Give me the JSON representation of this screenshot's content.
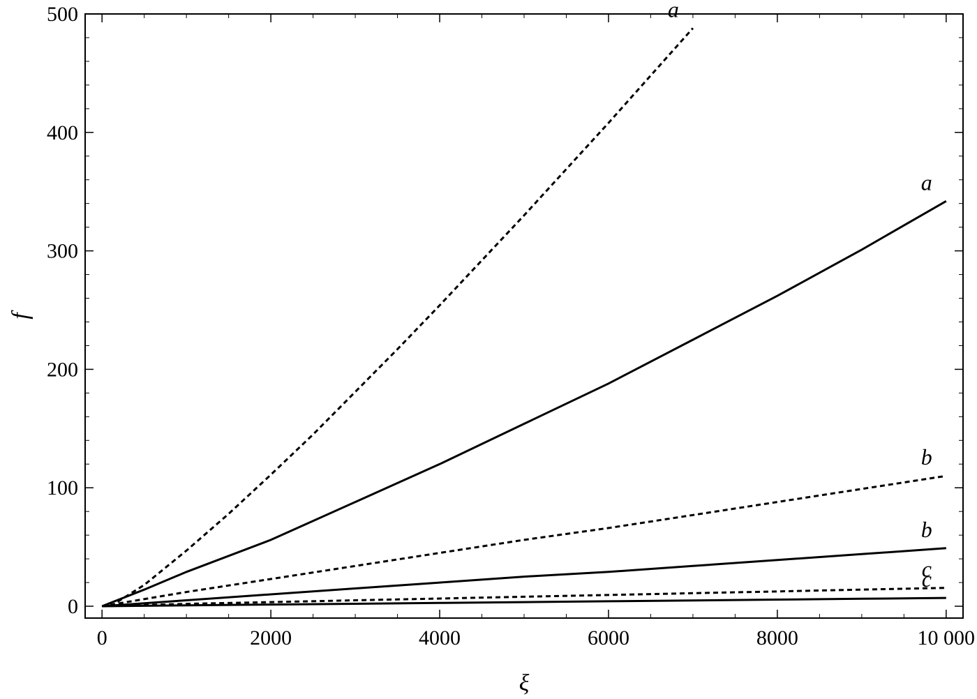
{
  "chart_data": {
    "type": "line",
    "title": "",
    "xlabel": "ξ",
    "ylabel": "f",
    "xlim": [
      -200,
      10200
    ],
    "ylim": [
      -10,
      500
    ],
    "xticks": [
      0,
      2000,
      4000,
      6000,
      8000,
      10000
    ],
    "xtick_labels": [
      "0",
      "2000",
      "4000",
      "6000",
      "8000",
      "10 000"
    ],
    "yticks": [
      0,
      100,
      200,
      300,
      400,
      500
    ],
    "ytick_labels": [
      "0",
      "100",
      "200",
      "300",
      "400",
      "500"
    ],
    "grid": false,
    "legend": "none",
    "series": [
      {
        "label": "a",
        "style": "dashed",
        "x": [
          100,
          500,
          1000,
          1500,
          2000,
          2500,
          3000,
          3500,
          4000,
          4500,
          5000,
          5500,
          6000,
          6500,
          7000
        ],
        "values": [
          0,
          18,
          47,
          78,
          111,
          145,
          181,
          217,
          254,
          292,
          330,
          369,
          408,
          448,
          488
        ]
      },
      {
        "label": "a",
        "style": "solid",
        "x": [
          0,
          500,
          1000,
          2000,
          3000,
          4000,
          5000,
          6000,
          7000,
          8000,
          9000,
          10000
        ],
        "values": [
          0,
          14,
          29,
          56,
          88,
          120,
          154,
          188,
          225,
          262,
          301,
          342
        ]
      },
      {
        "label": "b",
        "style": "dashed",
        "x": [
          0,
          1000,
          2000,
          3000,
          4000,
          5000,
          6000,
          7000,
          8000,
          9000,
          10000
        ],
        "values": [
          0,
          12,
          23,
          34,
          45,
          56,
          66,
          77,
          88,
          99,
          110
        ]
      },
      {
        "label": "b",
        "style": "solid",
        "x": [
          0,
          1000,
          2000,
          3000,
          4000,
          5000,
          6000,
          7000,
          8000,
          9000,
          10000
        ],
        "values": [
          0,
          5,
          10,
          15,
          20,
          25,
          29,
          34,
          39,
          44,
          49
        ]
      },
      {
        "label": "c",
        "style": "dashed",
        "x": [
          0,
          1000,
          2000,
          3000,
          4000,
          5000,
          6000,
          7000,
          8000,
          9000,
          10000
        ],
        "values": [
          0,
          2,
          3.5,
          5,
          6.5,
          8,
          9.5,
          11,
          12.5,
          14,
          15.5
        ]
      },
      {
        "label": "c",
        "style": "solid",
        "x": [
          0,
          1000,
          2000,
          3000,
          4000,
          5000,
          6000,
          7000,
          8000,
          9000,
          10000
        ],
        "values": [
          0,
          0.7,
          1.4,
          2.1,
          2.8,
          3.5,
          4.2,
          4.9,
          5.6,
          6.3,
          7
        ]
      }
    ]
  }
}
